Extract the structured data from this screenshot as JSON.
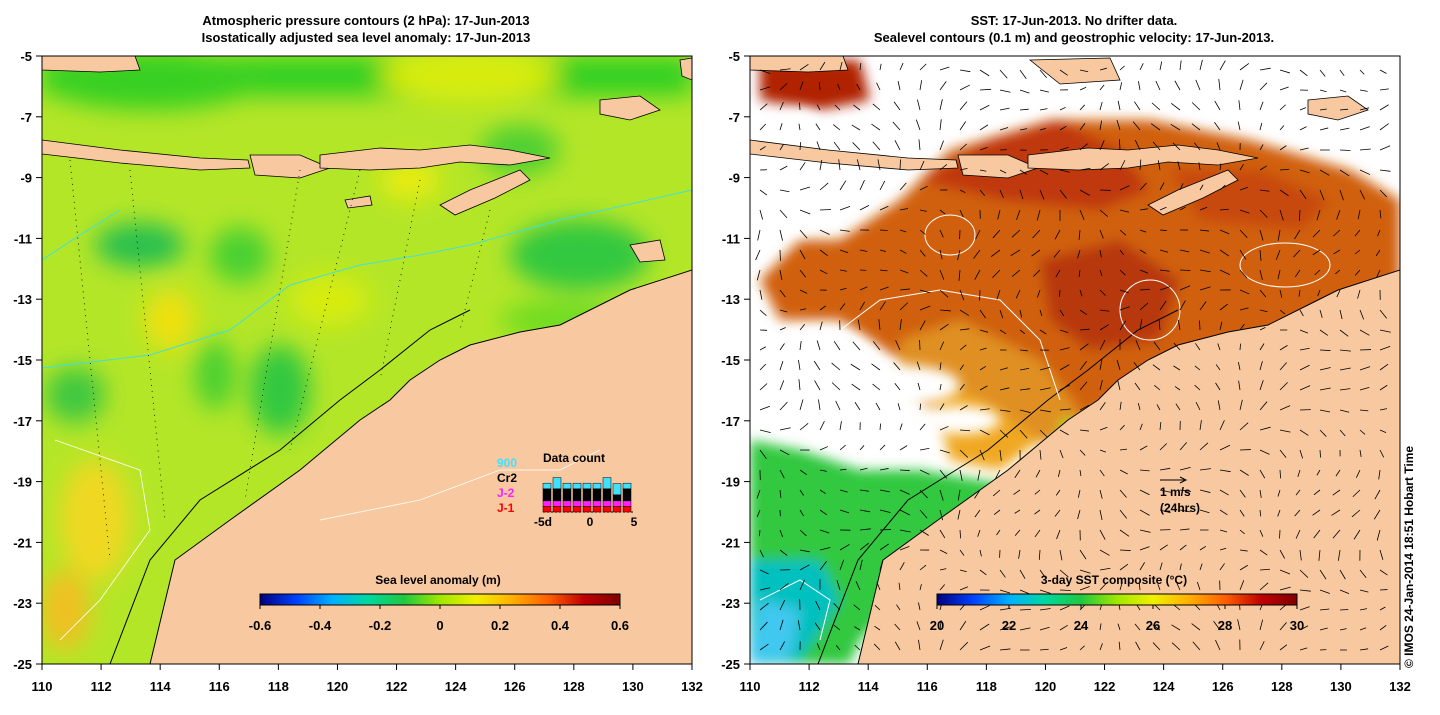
{
  "left_panel": {
    "title_line1": "Atmospheric pressure contours (2 hPa): 17-Jun-2013",
    "title_line2": "Isostatically adjusted sea level anomaly: 17-Jun-2013",
    "colorbar": {
      "label": "Sea level anomaly (m)",
      "min": -0.6,
      "max": 0.6,
      "tick_labels": [
        "-0.6",
        "-0.4",
        "-0.2",
        "0",
        "0.2",
        "0.4",
        "0.6"
      ],
      "stops": [
        "#00007f",
        "#0040ff",
        "#00b0ff",
        "#00d8a0",
        "#20c840",
        "#a0e800",
        "#f0f000",
        "#ffb000",
        "#ff6000",
        "#c00000",
        "#800000"
      ]
    },
    "data_count": {
      "title": "Data count",
      "legend": [
        {
          "label": "900",
          "color": "#40e0ff"
        },
        {
          "label": "Cr2",
          "color": "#000000"
        },
        {
          "label": "J-2",
          "color": "#ff20ff"
        },
        {
          "label": "J-1",
          "color": "#ff0000"
        }
      ],
      "x_labels": [
        "-5d",
        "0",
        "5"
      ],
      "bars": [
        {
          "j1": 1,
          "j2": 1,
          "cr2": 2,
          "e900": 1
        },
        {
          "j1": 1,
          "j2": 1,
          "cr2": 2,
          "e900": 2
        },
        {
          "j1": 1,
          "j2": 1,
          "cr2": 2,
          "e900": 1
        },
        {
          "j1": 1,
          "j2": 1,
          "cr2": 2,
          "e900": 1
        },
        {
          "j1": 1,
          "j2": 1,
          "cr2": 2,
          "e900": 1
        },
        {
          "j1": 1,
          "j2": 1,
          "cr2": 2,
          "e900": 1
        },
        {
          "j1": 1,
          "j2": 1,
          "cr2": 2,
          "e900": 2
        },
        {
          "j1": 1,
          "j2": 1,
          "cr2": 1,
          "e900": 2
        },
        {
          "j1": 1,
          "j2": 1,
          "cr2": 2,
          "e900": 1
        }
      ]
    }
  },
  "right_panel": {
    "title_line1": "SST: 17-Jun-2013. No drifter data.",
    "title_line2": "Sealevel contours (0.1 m) and geostrophic velocity: 17-Jun-2013.",
    "colorbar": {
      "label": "3-day SST composite (°C)",
      "min": 20,
      "max": 30,
      "tick_labels": [
        "20",
        "22",
        "24",
        "26",
        "28",
        "30"
      ],
      "stops": [
        "#00007f",
        "#0040ff",
        "#00b0ff",
        "#00d8a0",
        "#20c840",
        "#a0e800",
        "#f0f000",
        "#ffb000",
        "#ff6000",
        "#c00000",
        "#800000"
      ]
    },
    "velocity_scale": {
      "value": "1 m/s",
      "note": "(24hrs)"
    }
  },
  "axes": {
    "x_ticks": [
      "110",
      "112",
      "114",
      "116",
      "118",
      "120",
      "122",
      "124",
      "126",
      "128",
      "130",
      "132"
    ],
    "y_ticks": [
      "-5",
      "-7",
      "-9",
      "-11",
      "-13",
      "-15",
      "-17",
      "-19",
      "-21",
      "-23",
      "-25"
    ],
    "lon_range": [
      110,
      132
    ],
    "lat_range": [
      -25,
      -5
    ]
  },
  "credit": "© IMOS 24-Jan-2014 18:51 Hobart Time",
  "colors": {
    "land": "#f8c8a0",
    "coast": "#000000",
    "contour_white": "#ffffff",
    "contour_cyan": "#40e0e0"
  }
}
